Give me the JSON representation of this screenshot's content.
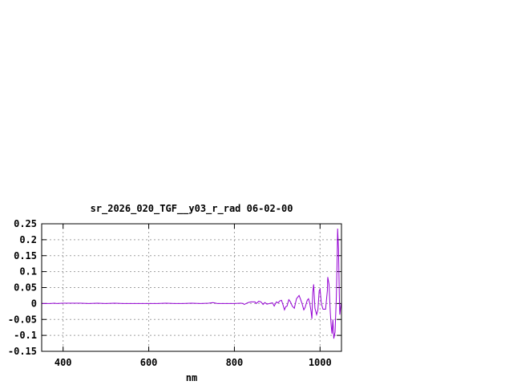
{
  "chart_data": {
    "type": "line",
    "title": "sr_2026_020_TGF__y03_r_rad 06-02-00",
    "xlabel": "nm",
    "ylabel": "",
    "xlim": [
      350,
      1050
    ],
    "ylim": [
      -0.15,
      0.25
    ],
    "xticks": [
      400,
      600,
      800,
      1000
    ],
    "yticks": [
      0.25,
      0.2,
      0.15,
      0.1,
      0.05,
      0,
      -0.05,
      -0.1,
      -0.15
    ],
    "ytick_labels": [
      "0.25",
      "0.2",
      "0.15",
      "0.1",
      "0.05",
      "0",
      "-0.05",
      "-0.1",
      "-0.15"
    ],
    "grid": true,
    "line_color": "#9400d3",
    "series": [
      {
        "x": [
          350,
          370,
          380,
          385,
          400,
          420,
          440,
          460,
          480,
          500,
          520,
          540,
          560,
          580,
          600,
          620,
          640,
          660,
          680,
          700,
          720,
          740,
          750,
          760,
          780,
          800,
          815,
          820,
          823,
          832,
          839,
          848,
          851,
          857,
          862,
          867,
          871,
          876,
          882,
          889,
          893,
          898,
          902,
          906,
          910,
          913,
          917,
          920,
          923,
          927,
          931,
          935,
          940,
          945,
          948,
          951,
          954,
          958,
          962,
          965,
          970,
          973,
          976,
          979,
          981,
          983,
          985,
          988,
          992,
          995,
          998,
          1000,
          1003,
          1007,
          1013,
          1017,
          1018,
          1021,
          1024,
          1026,
          1028,
          1030,
          1032,
          1035,
          1038,
          1040,
          1041,
          1043,
          1045,
          1046,
          1049
        ],
        "y": [
          0,
          0,
          0.001,
          0,
          0.001,
          0.001,
          0.001,
          0,
          0.001,
          0,
          0.001,
          0,
          0,
          0,
          0,
          0,
          0.001,
          0,
          0,
          0.001,
          0,
          0.001,
          0.003,
          0,
          0,
          0,
          0.001,
          0,
          -0.003,
          0.003,
          0.005,
          0.005,
          0,
          0.007,
          0.005,
          -0.003,
          0.003,
          -0.002,
          0,
          0.002,
          -0.008,
          0.005,
          0.002,
          0.008,
          0.01,
          -0.002,
          -0.02,
          -0.01,
          -0.008,
          0.012,
          0.005,
          -0.008,
          -0.015,
          0.015,
          0.02,
          0.025,
          0.015,
          0,
          -0.02,
          -0.013,
          0.01,
          0.015,
          0,
          -0.025,
          -0.048,
          0.035,
          0.06,
          -0.015,
          -0.035,
          -0.02,
          0.04,
          0.045,
          0,
          -0.018,
          -0.018,
          0.04,
          0.083,
          0.06,
          -0.03,
          -0.07,
          -0.095,
          -0.05,
          -0.11,
          -0.09,
          0.02,
          0.15,
          0.235,
          0.17,
          0.03,
          -0.035,
          0
        ]
      }
    ]
  }
}
